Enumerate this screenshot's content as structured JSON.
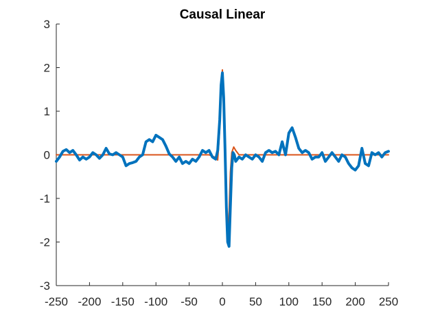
{
  "chart_data": {
    "type": "line",
    "title": "Causal Linear",
    "xlabel": "",
    "ylabel": "",
    "xlim": [
      -250,
      250
    ],
    "ylim": [
      -3,
      3
    ],
    "x_ticks": [
      -250,
      -200,
      -150,
      -100,
      -50,
      0,
      50,
      100,
      150,
      200,
      250
    ],
    "x_tick_labels": [
      "-250",
      "-200",
      "-150",
      "-100",
      "-50",
      "0",
      "50",
      "100",
      "150",
      "200",
      "250"
    ],
    "y_ticks": [
      -3,
      -2,
      -1,
      0,
      1,
      2,
      3
    ],
    "y_tick_labels": [
      "-3",
      "-2",
      "-1",
      "0",
      "1",
      "2",
      "3"
    ],
    "grid": false,
    "box": "left-bottom axes only",
    "series": [
      {
        "color": "#D95319",
        "line_width": "thin",
        "points": [
          [
            -250,
            0
          ],
          [
            -30,
            0
          ],
          [
            -20,
            0
          ],
          [
            -12,
            -0.05
          ],
          [
            -7,
            -0.12
          ],
          [
            -4,
            0.6
          ],
          [
            -2,
            1.6
          ],
          [
            0,
            1.95
          ],
          [
            2,
            1.2
          ],
          [
            4,
            0.1
          ],
          [
            6,
            -1.1
          ],
          [
            8,
            -1.85
          ],
          [
            10,
            -1.3
          ],
          [
            12,
            -0.4
          ],
          [
            14,
            0.05
          ],
          [
            17,
            0.18
          ],
          [
            20,
            0.1
          ],
          [
            25,
            0
          ],
          [
            250,
            0
          ]
        ]
      },
      {
        "color": "#0072BD",
        "line_width": "thick",
        "points": [
          [
            -250,
            -0.15
          ],
          [
            -245,
            -0.05
          ],
          [
            -240,
            0.08
          ],
          [
            -235,
            0.12
          ],
          [
            -230,
            0.05
          ],
          [
            -225,
            0.1
          ],
          [
            -220,
            0.0
          ],
          [
            -215,
            -0.12
          ],
          [
            -210,
            -0.05
          ],
          [
            -205,
            -0.1
          ],
          [
            -200,
            -0.05
          ],
          [
            -195,
            0.05
          ],
          [
            -190,
            0.0
          ],
          [
            -185,
            -0.08
          ],
          [
            -180,
            0.0
          ],
          [
            -175,
            0.15
          ],
          [
            -170,
            0.02
          ],
          [
            -165,
            0.0
          ],
          [
            -160,
            0.05
          ],
          [
            -155,
            0.0
          ],
          [
            -150,
            -0.05
          ],
          [
            -145,
            -0.25
          ],
          [
            -140,
            -0.2
          ],
          [
            -135,
            -0.18
          ],
          [
            -130,
            -0.15
          ],
          [
            -125,
            -0.05
          ],
          [
            -120,
            0.0
          ],
          [
            -115,
            0.3
          ],
          [
            -110,
            0.35
          ],
          [
            -105,
            0.3
          ],
          [
            -100,
            0.45
          ],
          [
            -95,
            0.4
          ],
          [
            -90,
            0.35
          ],
          [
            -85,
            0.2
          ],
          [
            -80,
            0.02
          ],
          [
            -75,
            -0.05
          ],
          [
            -70,
            -0.15
          ],
          [
            -65,
            -0.05
          ],
          [
            -60,
            -0.2
          ],
          [
            -55,
            -0.15
          ],
          [
            -50,
            -0.2
          ],
          [
            -45,
            -0.1
          ],
          [
            -40,
            -0.15
          ],
          [
            -35,
            -0.05
          ],
          [
            -30,
            0.1
          ],
          [
            -25,
            0.05
          ],
          [
            -20,
            0.1
          ],
          [
            -15,
            -0.05
          ],
          [
            -10,
            -0.1
          ],
          [
            -7,
            0.1
          ],
          [
            -4,
            0.8
          ],
          [
            -2,
            1.6
          ],
          [
            0,
            1.88
          ],
          [
            2,
            1.3
          ],
          [
            4,
            0.1
          ],
          [
            6,
            -1.2
          ],
          [
            8,
            -2.0
          ],
          [
            10,
            -2.1
          ],
          [
            12,
            -1.2
          ],
          [
            14,
            -0.3
          ],
          [
            16,
            0.05
          ],
          [
            18,
            0.0
          ],
          [
            20,
            -0.15
          ],
          [
            25,
            -0.05
          ],
          [
            30,
            -0.1
          ],
          [
            35,
            0.0
          ],
          [
            40,
            -0.05
          ],
          [
            45,
            -0.1
          ],
          [
            50,
            0.0
          ],
          [
            55,
            -0.05
          ],
          [
            60,
            -0.15
          ],
          [
            65,
            0.05
          ],
          [
            70,
            0.1
          ],
          [
            75,
            0.05
          ],
          [
            80,
            0.08
          ],
          [
            85,
            0.0
          ],
          [
            90,
            0.3
          ],
          [
            95,
            0.0
          ],
          [
            100,
            0.5
          ],
          [
            105,
            0.62
          ],
          [
            110,
            0.4
          ],
          [
            115,
            0.15
          ],
          [
            120,
            0.05
          ],
          [
            125,
            0.1
          ],
          [
            130,
            0.05
          ],
          [
            135,
            -0.1
          ],
          [
            140,
            -0.05
          ],
          [
            145,
            -0.05
          ],
          [
            150,
            0.05
          ],
          [
            155,
            -0.15
          ],
          [
            160,
            -0.05
          ],
          [
            165,
            0.05
          ],
          [
            170,
            -0.05
          ],
          [
            175,
            -0.15
          ],
          [
            180,
            0.0
          ],
          [
            185,
            -0.05
          ],
          [
            190,
            -0.2
          ],
          [
            195,
            -0.3
          ],
          [
            200,
            -0.35
          ],
          [
            205,
            -0.25
          ],
          [
            210,
            0.15
          ],
          [
            215,
            -0.2
          ],
          [
            220,
            -0.25
          ],
          [
            225,
            0.05
          ],
          [
            230,
            0.0
          ],
          [
            235,
            0.05
          ],
          [
            240,
            -0.05
          ],
          [
            245,
            0.05
          ],
          [
            250,
            0.08
          ]
        ]
      }
    ]
  }
}
